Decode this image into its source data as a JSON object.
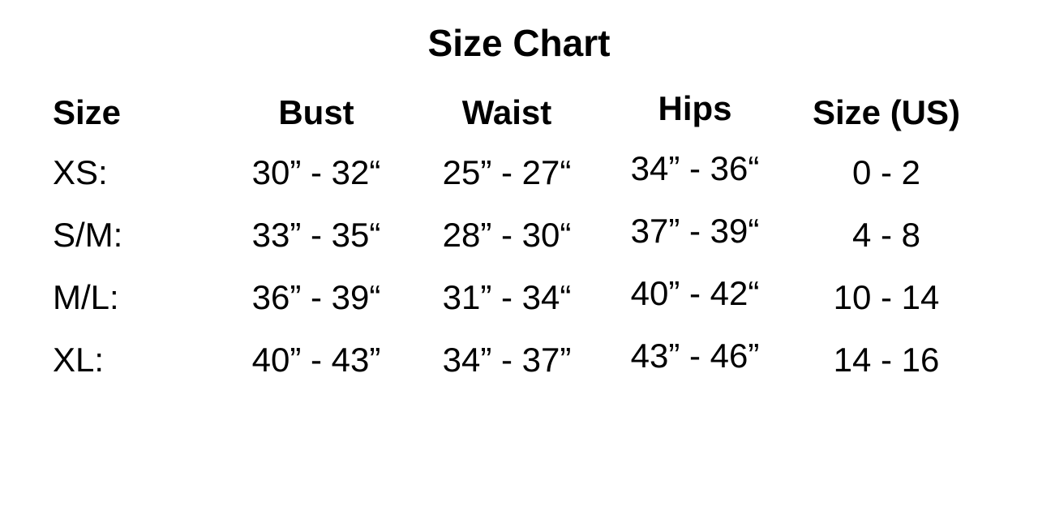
{
  "title": "Size Chart",
  "headers": [
    "Size",
    "Bust",
    "Waist",
    "Hips",
    "Size (US)"
  ],
  "rows": [
    [
      "XS:",
      "30” - 32“",
      "25” - 27“",
      "34” - 36“",
      "0 - 2"
    ],
    [
      "S/M:",
      "33” - 35“",
      "28” - 30“",
      "37” - 39“",
      "4 - 8"
    ],
    [
      "M/L:",
      "36” - 39“",
      "31” - 34“",
      "40” - 42“",
      "10 - 14"
    ],
    [
      "XL:",
      "40” - 43”",
      "34” - 37”",
      "43” - 46”",
      "14 - 16"
    ]
  ]
}
